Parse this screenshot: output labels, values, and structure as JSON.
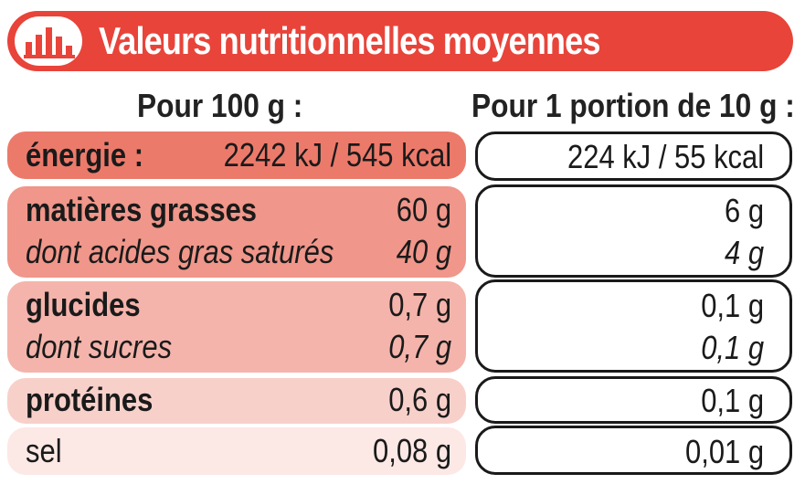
{
  "title": "Valeurs nutritionnelles moyennes",
  "header": {
    "per100": "Pour 100 g :",
    "perPortion": "Pour 1 portion de 10 g :"
  },
  "colors": {
    "banner": "#e8443a",
    "row1": "#ec7a6b",
    "row2": "#f0968a",
    "row3": "#f4b4ab",
    "row4": "#f8d0ca",
    "row5": "#fce8e5"
  },
  "rows": [
    {
      "label": "énergie :",
      "v100": "2242 kJ / 545 kcal",
      "vPortion": "224 kJ / 55 kcal"
    },
    {
      "label": "matières grasses",
      "v100": "60 g",
      "vPortion": "6 g",
      "sub": {
        "label": "dont acides gras saturés",
        "v100": "40 g",
        "vPortion": "4 g"
      }
    },
    {
      "label": "glucides",
      "v100": "0,7 g",
      "vPortion": "0,1 g",
      "sub": {
        "label": "dont sucres",
        "v100": "0,7 g",
        "vPortion": "0,1 g"
      }
    },
    {
      "label": "protéines",
      "v100": "0,6 g",
      "vPortion": "0,1 g"
    },
    {
      "label": "sel",
      "v100": "0,08 g",
      "vPortion": "0,01 g"
    }
  ]
}
